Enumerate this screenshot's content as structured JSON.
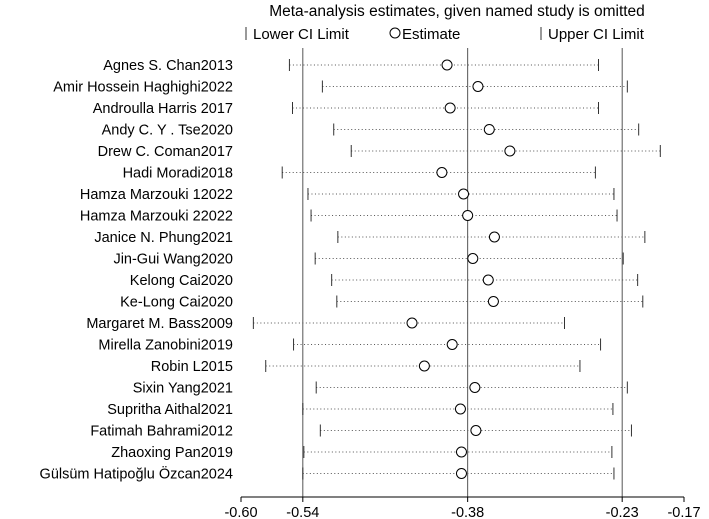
{
  "chart_data": {
    "type": "forest",
    "title": "Meta-analysis estimates, given named study is omitted",
    "legend": {
      "lower": "Lower CI Limit",
      "estimate": "Estimate",
      "upper": "Upper CI Limit",
      "placement": "top"
    },
    "xlim": [
      -0.6,
      -0.17
    ],
    "ticks": [
      -0.6,
      -0.54,
      -0.38,
      -0.23,
      -0.17
    ],
    "tick_labels": [
      "-0.60",
      "-0.54",
      "-0.38",
      "-0.23",
      "-0.17"
    ],
    "reference_lines": [
      -0.54,
      -0.38,
      -0.23
    ],
    "studies": [
      {
        "label": "Agnes S. Chan2013",
        "lower": -0.553,
        "estimate": -0.4,
        "upper": -0.253
      },
      {
        "label": "Amir Hossein Haghighi2022",
        "lower": -0.521,
        "estimate": -0.37,
        "upper": -0.225
      },
      {
        "label": "Androulla Harris 2017",
        "lower": -0.55,
        "estimate": -0.397,
        "upper": -0.253
      },
      {
        "label": "Andy C. Y . Tse2020",
        "lower": -0.51,
        "estimate": -0.359,
        "upper": -0.214
      },
      {
        "label": "Drew C. Coman2017",
        "lower": -0.493,
        "estimate": -0.339,
        "upper": -0.193
      },
      {
        "label": "Hadi Moradi2018",
        "lower": -0.56,
        "estimate": -0.405,
        "upper": -0.256
      },
      {
        "label": "Hamza Marzouki 12022",
        "lower": -0.535,
        "estimate": -0.384,
        "upper": -0.238
      },
      {
        "label": "Hamza Marzouki 22022",
        "lower": -0.532,
        "estimate": -0.38,
        "upper": -0.235
      },
      {
        "label": "Janice N. Phung2021",
        "lower": -0.506,
        "estimate": -0.354,
        "upper": -0.208
      },
      {
        "label": "Jin-Gui Wang2020",
        "lower": -0.528,
        "estimate": -0.375,
        "upper": -0.229
      },
      {
        "label": "Kelong Cai2020",
        "lower": -0.512,
        "estimate": -0.36,
        "upper": -0.215
      },
      {
        "label": "Ke-Long Cai2020",
        "lower": -0.507,
        "estimate": -0.355,
        "upper": -0.21
      },
      {
        "label": "Margaret M. Bass2009",
        "lower": -0.588,
        "estimate": -0.434,
        "upper": -0.286
      },
      {
        "label": "Mirella Zanobini2019",
        "lower": -0.549,
        "estimate": -0.395,
        "upper": -0.251
      },
      {
        "label": "Robin L2015",
        "lower": -0.576,
        "estimate": -0.422,
        "upper": -0.271
      },
      {
        "label": "Sixin Yang2021",
        "lower": -0.527,
        "estimate": -0.373,
        "upper": -0.225
      },
      {
        "label": "Supritha Aithal2021",
        "lower": -0.54,
        "estimate": -0.387,
        "upper": -0.239
      },
      {
        "label": "Fatimah Bahrami2012",
        "lower": -0.523,
        "estimate": -0.372,
        "upper": -0.221
      },
      {
        "label": "Zhaoxing Pan2019",
        "lower": -0.539,
        "estimate": -0.386,
        "upper": -0.24
      },
      {
        "label": "Gülsüm Hatipoğlu Özcan2024",
        "lower": -0.54,
        "estimate": -0.386,
        "upper": -0.238
      }
    ]
  }
}
